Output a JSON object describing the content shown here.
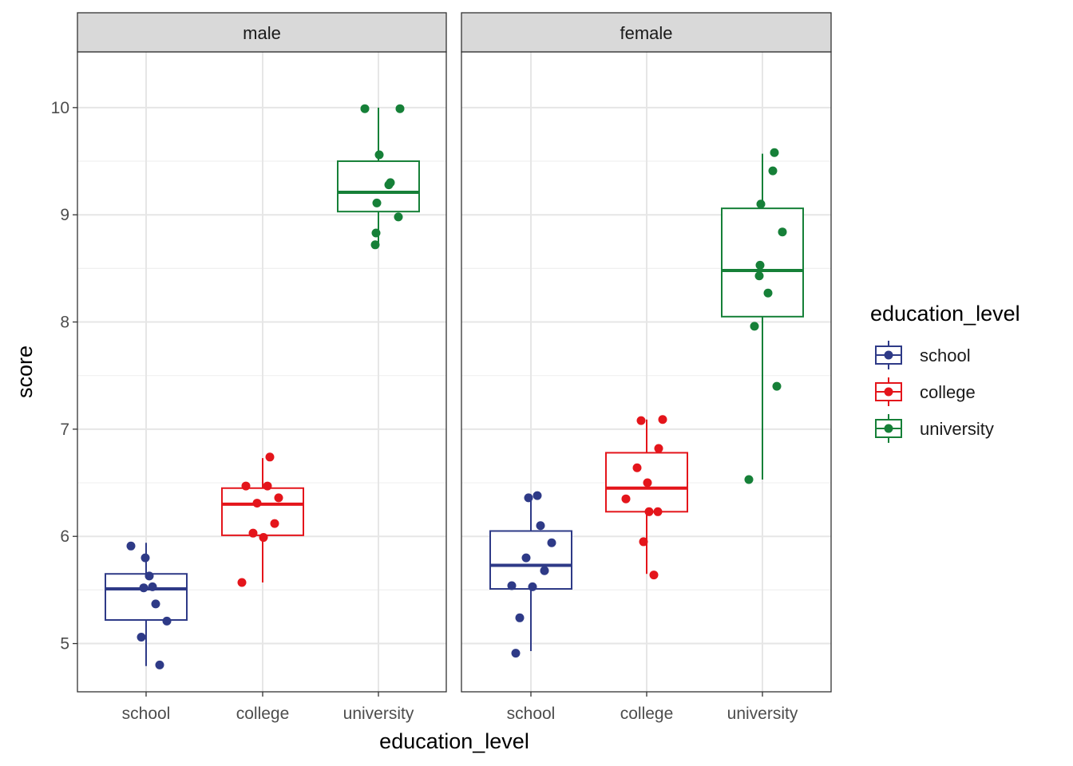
{
  "chart_data": {
    "type": "box",
    "facets": [
      "male",
      "female"
    ],
    "categories": [
      "school",
      "college",
      "university"
    ],
    "xlabel": "education_level",
    "ylabel": "score",
    "ylim": [
      4.55,
      10.52
    ],
    "yticks": [
      5,
      6,
      7,
      8,
      9,
      10
    ],
    "grid": true,
    "legend": {
      "title": "education_level",
      "position": "right",
      "entries": [
        "school",
        "college",
        "university"
      ]
    },
    "colors": {
      "school": "#2e3a87",
      "college": "#e4151b",
      "university": "#168038"
    },
    "boxes": {
      "male": {
        "school": {
          "lower_whisker": 4.79,
          "q1": 5.22,
          "median": 5.51,
          "q3": 5.65,
          "upper_whisker": 5.94
        },
        "college": {
          "lower_whisker": 5.57,
          "q1": 6.01,
          "median": 6.3,
          "q3": 6.45,
          "upper_whisker": 6.73
        },
        "university": {
          "lower_whisker": 8.71,
          "q1": 9.03,
          "median": 9.21,
          "q3": 9.5,
          "upper_whisker": 10.0
        }
      },
      "female": {
        "school": {
          "lower_whisker": 4.93,
          "q1": 5.51,
          "median": 5.73,
          "q3": 6.05,
          "upper_whisker": 6.39
        },
        "college": {
          "lower_whisker": 5.65,
          "q1": 6.23,
          "median": 6.45,
          "q3": 6.78,
          "upper_whisker": 7.09
        },
        "university": {
          "lower_whisker": 6.53,
          "q1": 8.05,
          "median": 8.48,
          "q3": 9.06,
          "upper_whisker": 9.57
        }
      }
    },
    "points": {
      "male": {
        "school": [
          5.91,
          5.8,
          5.63,
          5.53,
          5.52,
          5.37,
          5.21,
          5.06,
          4.8
        ],
        "college": [
          6.74,
          6.47,
          6.47,
          6.36,
          6.31,
          6.12,
          6.03,
          5.99,
          5.57
        ],
        "university": [
          9.99,
          9.99,
          9.56,
          9.3,
          9.28,
          9.11,
          8.98,
          8.83,
          8.72
        ]
      },
      "female": {
        "school": [
          6.38,
          6.36,
          6.1,
          5.94,
          5.8,
          5.68,
          5.54,
          5.53,
          5.24,
          4.91
        ],
        "college": [
          7.09,
          7.08,
          6.82,
          6.64,
          6.5,
          6.35,
          6.23,
          6.23,
          5.95,
          5.64
        ],
        "university": [
          9.58,
          9.41,
          9.1,
          8.84,
          8.53,
          8.43,
          8.27,
          7.96,
          7.4,
          6.53
        ]
      }
    }
  }
}
